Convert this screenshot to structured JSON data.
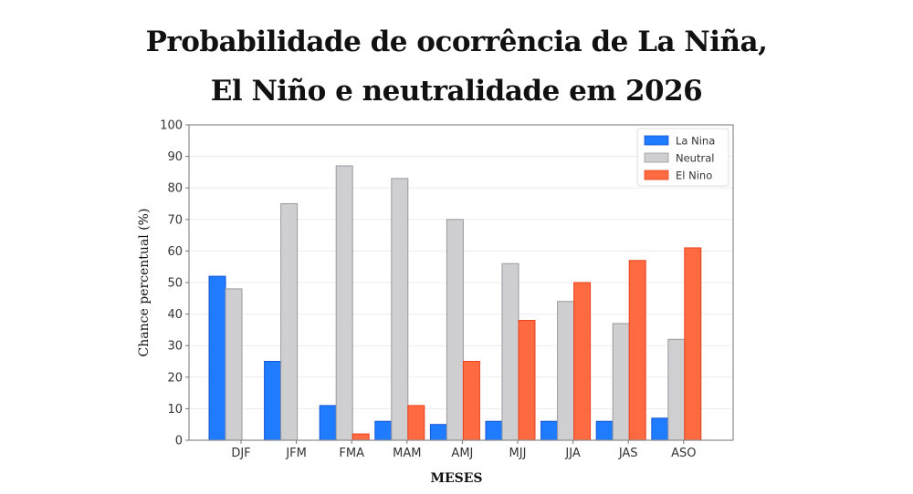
{
  "title_lines": [
    "Probabilidade de ocorrência de La Niña,",
    "El Niño e neutralidade em 2026"
  ],
  "chart_data": {
    "type": "bar",
    "title": "Probabilidade de ocorrência de La Niña, El Niño e neutralidade em 2026",
    "xlabel": "MESES",
    "ylabel": "Chance percentual (%)",
    "ylim": [
      0,
      100
    ],
    "yticks": [
      0,
      10,
      20,
      30,
      40,
      50,
      60,
      70,
      80,
      90,
      100
    ],
    "grid": true,
    "legend_position": "top-right",
    "categories": [
      "DJF",
      "JFM",
      "FMA",
      "MAM",
      "AMJ",
      "MJJ",
      "JJA",
      "JAS",
      "ASO"
    ],
    "series": [
      {
        "name": "La Nina",
        "color": "#1f7bff",
        "values": [
          52,
          25,
          11,
          6,
          5,
          6,
          6,
          6,
          7
        ]
      },
      {
        "name": "Neutral",
        "color": "#cfcfd1",
        "values": [
          48,
          75,
          87,
          83,
          70,
          56,
          44,
          37,
          32
        ]
      },
      {
        "name": "El Nino",
        "color": "#ff6a40",
        "values": [
          0,
          0,
          2,
          11,
          25,
          38,
          50,
          57,
          61
        ]
      }
    ]
  }
}
